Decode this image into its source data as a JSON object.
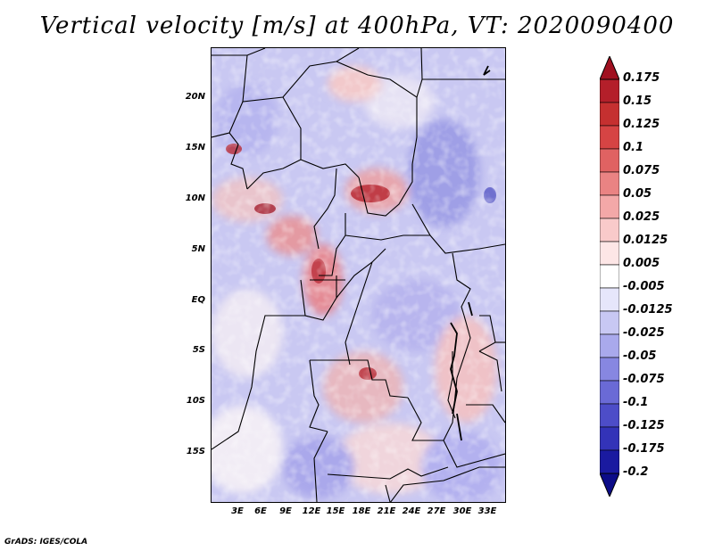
{
  "title": "Vertical velocity [m/s] at 400hPa, VT: 2020090400",
  "credit": "GrADS: IGES/COLA",
  "map": {
    "lat_labels": [
      "20N",
      "15N",
      "10N",
      "5N",
      "EQ",
      "5S",
      "10S",
      "15S"
    ],
    "lon_labels": [
      "3E",
      "6E",
      "9E",
      "12E",
      "15E",
      "18E",
      "21E",
      "24E",
      "27E",
      "30E",
      "33E"
    ]
  },
  "colorbar": {
    "labels": [
      "0.175",
      "0.15",
      "0.125",
      "0.1",
      "0.075",
      "0.05",
      "0.025",
      "0.0125",
      "0.005",
      "-0.005",
      "-0.0125",
      "-0.025",
      "-0.05",
      "-0.075",
      "-0.1",
      "-0.125",
      "-0.175",
      "-0.2"
    ],
    "colors": [
      "#a01020",
      "#b41f2a",
      "#c53030",
      "#d64444",
      "#e06262",
      "#ea8383",
      "#f3a8a8",
      "#f9caca",
      "#fde6e6",
      "#ffffff",
      "#e6e6fb",
      "#c8c8f3",
      "#a9a9ec",
      "#8787e1",
      "#6a6ad6",
      "#4d4dc8",
      "#3333b8",
      "#1a1aa0",
      "#0c0c88"
    ]
  }
}
